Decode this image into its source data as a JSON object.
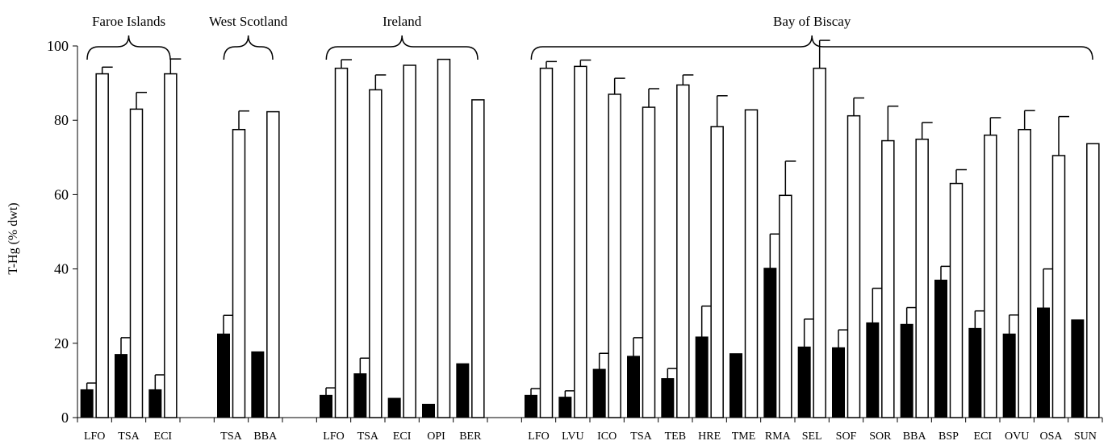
{
  "chart_data": {
    "type": "bar",
    "ylabel": "T-Hg (% dwt)",
    "ylim": [
      0,
      100
    ],
    "yticks": [
      0,
      20,
      40,
      60,
      80,
      100
    ],
    "series": [
      {
        "key": "black",
        "color": "#000000"
      },
      {
        "key": "white",
        "color": "#ffffff"
      }
    ],
    "groups": [
      {
        "name": "Faroe Islands",
        "categories": [
          {
            "label": "LFO",
            "black": 7.5,
            "black_err": 1.8,
            "white": 92.5,
            "white_err": 1.8
          },
          {
            "label": "TSA",
            "black": 17.0,
            "black_err": 4.5,
            "white": 83.0,
            "white_err": 4.5
          },
          {
            "label": "ECI",
            "black": 7.5,
            "black_err": 4.0,
            "white": 92.5,
            "white_err": 4.0
          }
        ]
      },
      {
        "name": "West Scotland",
        "categories": [
          {
            "label": "TSA",
            "black": 22.5,
            "black_err": 5.0,
            "white": 77.5,
            "white_err": 5.0
          },
          {
            "label": "BBA",
            "black": 17.7,
            "black_err": null,
            "white": 82.3,
            "white_err": null
          }
        ]
      },
      {
        "name": "Ireland",
        "categories": [
          {
            "label": "LFO",
            "black": 6.0,
            "black_err": 2.0,
            "white": 94.0,
            "white_err": 2.3
          },
          {
            "label": "TSA",
            "black": 11.8,
            "black_err": 4.2,
            "white": 88.2,
            "white_err": 4.0
          },
          {
            "label": "ECI",
            "black": 5.2,
            "black_err": null,
            "white": 94.8,
            "white_err": null
          },
          {
            "label": "OPI",
            "black": 3.6,
            "black_err": null,
            "white": 96.4,
            "white_err": null
          },
          {
            "label": "BER",
            "black": 14.5,
            "black_err": null,
            "white": 85.5,
            "white_err": null
          }
        ]
      },
      {
        "name": "Bay of Biscay",
        "categories": [
          {
            "label": "LFO",
            "black": 6.0,
            "black_err": 1.8,
            "white": 94.0,
            "white_err": 1.8
          },
          {
            "label": "LVU",
            "black": 5.5,
            "black_err": 1.7,
            "white": 94.5,
            "white_err": 1.7
          },
          {
            "label": "ICO",
            "black": 13.0,
            "black_err": 4.3,
            "white": 87.0,
            "white_err": 4.3
          },
          {
            "label": "TSA",
            "black": 16.5,
            "black_err": 5.0,
            "white": 83.5,
            "white_err": 5.0
          },
          {
            "label": "TEB",
            "black": 10.5,
            "black_err": 2.7,
            "white": 89.5,
            "white_err": 2.7
          },
          {
            "label": "HRE",
            "black": 21.7,
            "black_err": 8.3,
            "white": 78.3,
            "white_err": 8.3
          },
          {
            "label": "TME",
            "black": 17.2,
            "black_err": null,
            "white": 82.8,
            "white_err": null
          },
          {
            "label": "RMA",
            "black": 40.2,
            "black_err": 9.2,
            "white": 59.8,
            "white_err": 9.2
          },
          {
            "label": "SEL",
            "black": 19.0,
            "black_err": 7.5,
            "white": 94.0,
            "white_err": 7.5
          },
          {
            "label": "SOF",
            "black": 18.8,
            "black_err": 4.8,
            "white": 81.2,
            "white_err": 4.8
          },
          {
            "label": "SOR",
            "black": 25.5,
            "black_err": 9.3,
            "white": 74.5,
            "white_err": 9.3
          },
          {
            "label": "BBA",
            "black": 25.1,
            "black_err": 4.5,
            "white": 74.9,
            "white_err": 4.5
          },
          {
            "label": "BSP",
            "black": 37.0,
            "black_err": 3.7,
            "white": 63.0,
            "white_err": 3.7
          },
          {
            "label": "ECI",
            "black": 24.0,
            "black_err": 4.7,
            "white": 76.0,
            "white_err": 4.7
          },
          {
            "label": "OVU",
            "black": 22.5,
            "black_err": 5.1,
            "white": 77.5,
            "white_err": 5.1
          },
          {
            "label": "OSA",
            "black": 29.5,
            "black_err": 10.5,
            "white": 70.5,
            "white_err": 10.5
          },
          {
            "label": "SUN",
            "black": 26.3,
            "black_err": null,
            "white": 73.7,
            "white_err": null
          }
        ]
      }
    ]
  }
}
